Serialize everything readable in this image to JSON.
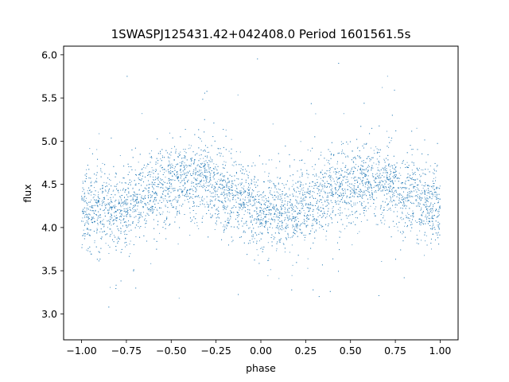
{
  "chart_data": {
    "type": "scatter",
    "title": "1SWASPJ125431.42+042408.0 Period 1601561.5s",
    "xlabel": "phase",
    "ylabel": "flux",
    "xlim": [
      -1.1,
      1.1
    ],
    "ylim": [
      2.7,
      6.1
    ],
    "xticks": [
      -1.0,
      -0.75,
      -0.5,
      -0.25,
      0.0,
      0.25,
      0.5,
      0.75,
      1.0
    ],
    "xtick_labels": [
      "−1.00",
      "−0.75",
      "−0.50",
      "−0.25",
      "0.00",
      "0.25",
      "0.50",
      "0.75",
      "1.00"
    ],
    "yticks": [
      3.0,
      3.5,
      4.0,
      4.5,
      5.0,
      5.5,
      6.0
    ],
    "ytick_labels": [
      "3.0",
      "3.5",
      "4.0",
      "4.5",
      "5.0",
      "5.5",
      "6.0"
    ],
    "marker_color": "#1f77b4",
    "grid": false,
    "series": [
      {
        "x": [
          -1.0,
          -0.9,
          -0.8,
          -0.7,
          -0.6,
          -0.5,
          -0.4,
          -0.3,
          -0.2,
          -0.1,
          0.0,
          0.1,
          0.2,
          0.3,
          0.4,
          0.5,
          0.6,
          0.7,
          0.8,
          0.9,
          1.0
        ],
        "y": [
          4.2,
          4.2,
          4.15,
          4.3,
          4.45,
          4.5,
          4.55,
          4.55,
          4.4,
          4.3,
          4.2,
          4.15,
          4.2,
          4.3,
          4.45,
          4.5,
          4.55,
          4.5,
          4.4,
          4.3,
          4.2
        ]
      }
    ]
  }
}
